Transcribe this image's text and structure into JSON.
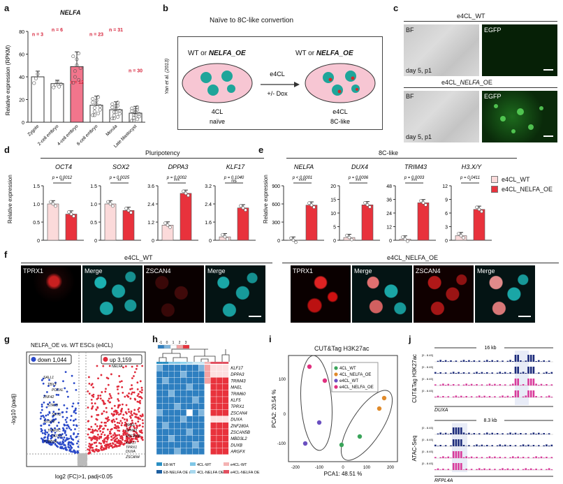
{
  "panels": {
    "a": {
      "letter": "a",
      "title": "NELFA",
      "ylabel": "Relative expression (RPKM)"
    },
    "b": {
      "letter": "b",
      "title": "Naïve to 8C-like convertion",
      "citation": "Yan et al. (2013)",
      "left_title_prefix": "WT or ",
      "left_title_gene": "NELFA_OE",
      "right_title_prefix": "WT or ",
      "right_title_gene": "NELFA_OE",
      "arrow_top": "e4CL",
      "arrow_bottom": "+/- Dox",
      "left_caption1": "4CL",
      "left_caption2": "naïve",
      "right_caption1": "e4CL",
      "right_caption2": "8C-like"
    },
    "c": {
      "letter": "c",
      "top_title": "e4CL_WT",
      "bottom_title_prefix": "e4CL_",
      "bottom_title_gene": "NELFA",
      "bottom_title_suffix": "_OE",
      "bf": "BF",
      "egfp": "EGFP",
      "day": "day 5, p1"
    },
    "d": {
      "letter": "d",
      "group": "Pluripotency",
      "ylabel": "Relative expression"
    },
    "e": {
      "letter": "e",
      "group": "8C-like",
      "ylabel": "Relative expression",
      "legend": [
        "e4CL_WT",
        "e4CL_NELFA_OE"
      ]
    },
    "f": {
      "letter": "f",
      "left_title": "e4CL_WT",
      "right_title": "e4CL_NELFA_OE",
      "labels": [
        "TPRX1",
        "Merge",
        "ZSCAN4",
        "Merge"
      ]
    },
    "g": {
      "letter": "g",
      "title": "NELFA_OE vs. WT ESCs (e4CL)",
      "down": "down 1,044",
      "up": "up 3,159",
      "xlabel": "log2 (FC)>1, padj<0.05",
      "ylabel": "-log10 (padj)",
      "left_genes": [
        "SALL1",
        "TBX3",
        "PODXL",
        "ZNF42",
        "STAT3",
        "SETD",
        "SUSD2",
        "TFAP2C",
        "DOT1L",
        "TUBB2A"
      ],
      "right_genes": [
        "NELFA",
        "MAEL",
        "DPPA3",
        "ZNF280A",
        "KLF17",
        "TPRX1",
        "DUXA",
        "ZSCAN4"
      ]
    },
    "h": {
      "letter": "h",
      "scale": [
        "-1",
        "0",
        "1",
        "2",
        "3"
      ],
      "genes": [
        "KLF17",
        "DPPA3",
        "TRIM43",
        "MAEL",
        "TRIM60",
        "KLF5",
        "TPRX1",
        "ZSCAN4",
        "DUXA",
        "ZNF280A",
        "ZSCAN5B",
        "MBD3L2",
        "DUXB",
        "ARGFX"
      ],
      "legend": [
        "E8-WT",
        "4CL-WT",
        "e4CL-WT",
        "E8-NELFA OE d3",
        "4CL-NELFA OE",
        "e4CL-NELFA OE"
      ]
    },
    "i": {
      "letter": "i",
      "title": "CUT&Tag H3K27ac",
      "xlabel": "PCA1: 48.51 %",
      "ylabel": "PCA2: 20.54 %",
      "legend": [
        "4CL_WT",
        "4CL_NELFA_OE",
        "e4CL_WT",
        "e4CL_NELFA_OE"
      ]
    },
    "j": {
      "letter": "j",
      "top_scale": "16 kb",
      "top_assay": "CUT&Tag H3K27ac",
      "top_gene": "DUXA",
      "bottom_scale": "8.3 kb",
      "bottom_assay": "ATAC-Seq",
      "bottom_gene": "RFPL4A",
      "range": "[0 - 8.45]"
    }
  },
  "chart_data": [
    {
      "type": "bar",
      "id": "a",
      "title": "NELFA",
      "ylabel": "Relative expression (RPKM)",
      "categories": [
        "Zygote",
        "2-cell embryo",
        "4-cell embryo",
        "8-cell embryo",
        "Morula",
        "Late blastocyst"
      ],
      "values": [
        40,
        34,
        49,
        15,
        11,
        8
      ],
      "errors": [
        5,
        3,
        13,
        8,
        7,
        6
      ],
      "n_labels": [
        "n = 3",
        "n = 6",
        "n = 12",
        "n = 23",
        "n = 31",
        "n = 30"
      ],
      "ylim": [
        0,
        80
      ],
      "yticks": [
        "0",
        "20",
        "40",
        "60",
        "80"
      ]
    },
    {
      "type": "bar",
      "id": "d-OCT4",
      "gene": "OCT4",
      "p": "p = 0.0012",
      "sig": "**",
      "values": [
        1.0,
        0.72
      ],
      "ylim": [
        0,
        1.5
      ],
      "yticks": [
        "0",
        "0.5",
        "1.0",
        "1.5"
      ]
    },
    {
      "type": "bar",
      "id": "d-SOX2",
      "gene": "SOX2",
      "p": "p = 0.0025",
      "sig": "**",
      "values": [
        1.0,
        0.82
      ],
      "ylim": [
        0,
        1.5
      ],
      "yticks": [
        "0",
        "0.5",
        "1.0",
        "1.5"
      ]
    },
    {
      "type": "bar",
      "id": "d-DPPA3",
      "gene": "DPPA3",
      "p": "p = 0.0002",
      "sig": "***",
      "values": [
        1.0,
        3.1
      ],
      "ylim": [
        0,
        3.6
      ],
      "yticks": [
        "0",
        "1.2",
        "2.4",
        "3.6"
      ]
    },
    {
      "type": "bar",
      "id": "d-KLF17",
      "gene": "KLF17",
      "p": "p = 0.1040",
      "sig": "ns",
      "values": [
        0.2,
        1.9
      ],
      "ylim": [
        0,
        3.2
      ],
      "yticks": [
        "0",
        "1.6",
        "2.4",
        "3.2"
      ]
    },
    {
      "type": "bar",
      "id": "e-NELFA",
      "gene": "NELFA",
      "p": "p < 0.0001",
      "sig": "****",
      "values": [
        1,
        580
      ],
      "ylim": [
        0,
        900
      ],
      "yticks": [
        "0",
        "300",
        "600",
        "900"
      ]
    },
    {
      "type": "bar",
      "id": "e-DUX4",
      "gene": "DUX4",
      "p": "p = 0.0006",
      "sig": "***",
      "values": [
        1,
        13
      ],
      "ylim": [
        0,
        20
      ],
      "yticks": [
        "0",
        "5",
        "10",
        "15",
        "20"
      ]
    },
    {
      "type": "bar",
      "id": "e-TRIM43",
      "gene": "TRIM43",
      "p": "p = 0.0003",
      "sig": "***",
      "values": [
        1,
        33
      ],
      "ylim": [
        0,
        48
      ],
      "yticks": [
        "0",
        "12",
        "24",
        "36",
        "48"
      ]
    },
    {
      "type": "bar",
      "id": "e-H3XY",
      "gene": "H3.X/Y",
      "p": "p = 0.0411",
      "sig": "*",
      "values": [
        1,
        6.8
      ],
      "ylim": [
        0,
        12
      ],
      "yticks": [
        "0",
        "3",
        "6",
        "9",
        "12"
      ]
    },
    {
      "type": "scatter",
      "id": "i",
      "title": "CUT&Tag H3K27ac",
      "xticks": [
        "-200",
        "-100",
        "0",
        "100",
        "200"
      ],
      "yticks": [
        "-100",
        "0",
        "100"
      ]
    }
  ],
  "colors": {
    "wt": "#fbdada",
    "oe": "#e8323c",
    "accent_pink": "#f48fb1",
    "nelfa_bar": "#f2758c"
  }
}
